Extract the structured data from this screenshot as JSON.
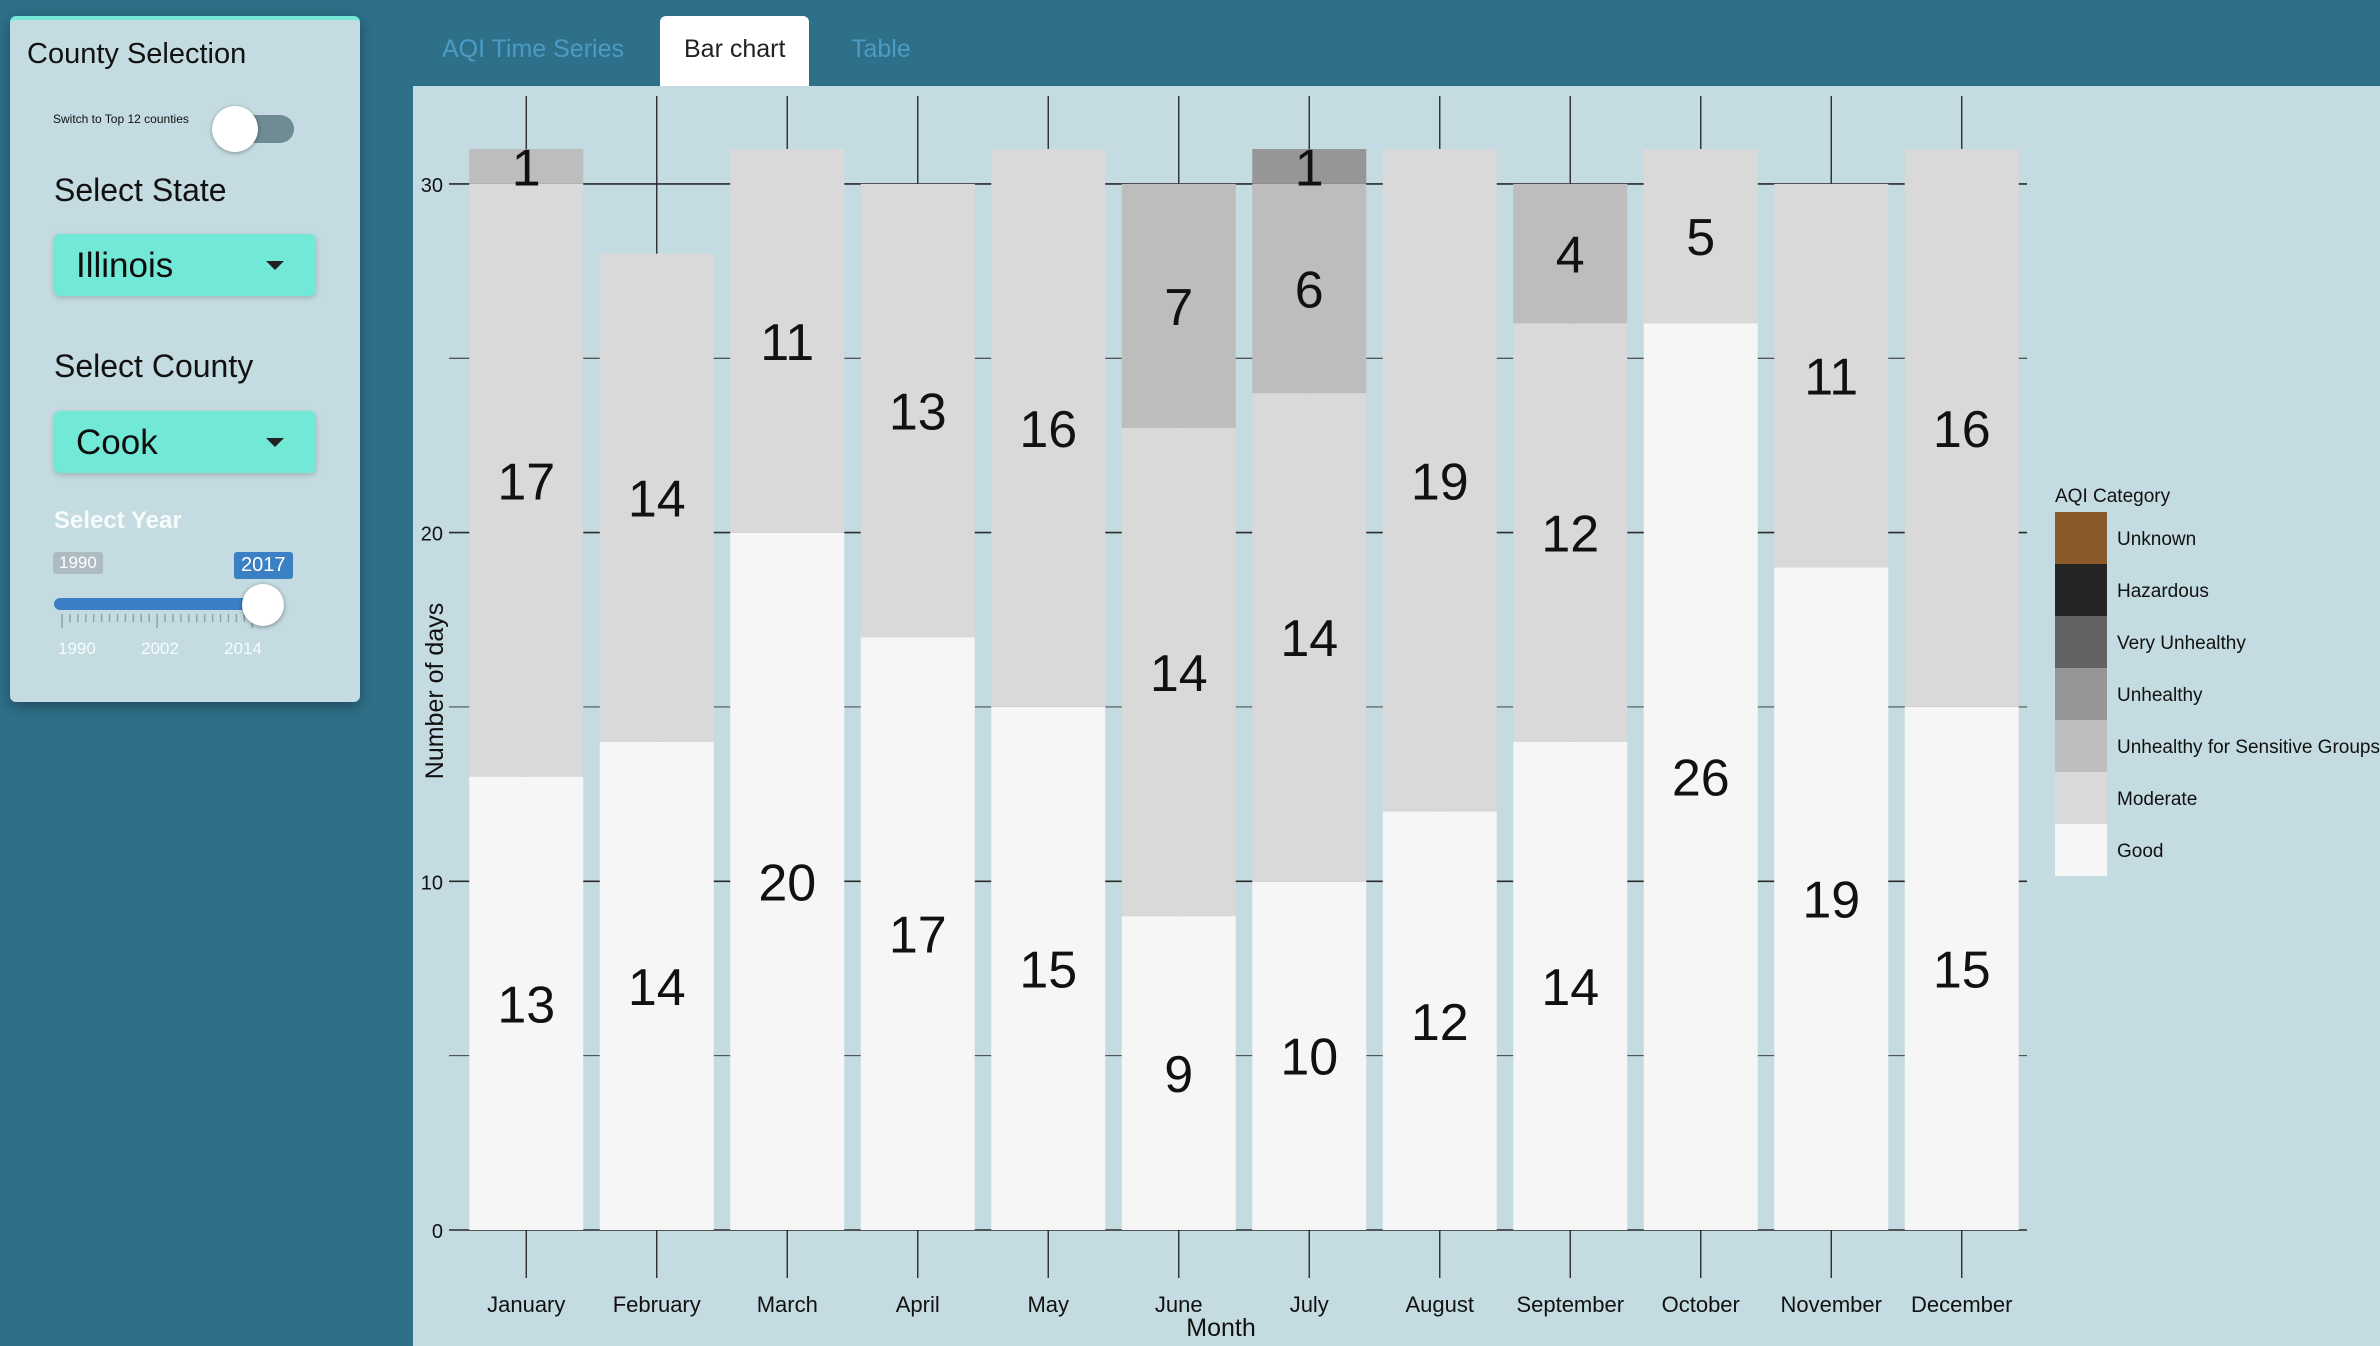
{
  "sidebar": {
    "title": "County Selection",
    "toggle_label": "Switch to Top 12 counties",
    "state_label": "Select State",
    "state_value": "Illinois",
    "county_label": "Select County",
    "county_value": "Cook",
    "year_label": "Select Year",
    "year_min": "1990",
    "year_current": "2017",
    "year_value": 2017,
    "year_range": [
      1990,
      2017
    ],
    "year_ticks": [
      "1990",
      "2002",
      "2014"
    ]
  },
  "tabs": [
    "AQI Time Series",
    "Bar chart",
    "Table"
  ],
  "active_tab": "Bar chart",
  "colors": {
    "background": "#2e7089",
    "panel": "#c3dbe1",
    "accent": "#72e8d6",
    "slider": "#3b7fc4",
    "tab_inactive_text": "#4b9bc4"
  },
  "chart_data": {
    "type": "bar",
    "stacked": true,
    "xlabel": "Month",
    "ylabel": "Number of days",
    "ylim": [
      0,
      31
    ],
    "yticks": [
      "0",
      "10",
      "20",
      "30"
    ],
    "categories": [
      "January",
      "February",
      "March",
      "April",
      "May",
      "June",
      "July",
      "August",
      "September",
      "October",
      "November",
      "December"
    ],
    "series": [
      {
        "name": "Good",
        "color": "#f6f6f6",
        "values": [
          13,
          14,
          20,
          17,
          15,
          9,
          10,
          12,
          14,
          26,
          19,
          15
        ]
      },
      {
        "name": "Moderate",
        "color": "#d9d9d9",
        "values": [
          17,
          14,
          11,
          13,
          16,
          14,
          14,
          19,
          12,
          5,
          11,
          16
        ]
      },
      {
        "name": "Unhealthy for Sensitive Groups",
        "color": "#bdbdbd",
        "values": [
          1,
          0,
          0,
          0,
          0,
          7,
          6,
          0,
          4,
          0,
          0,
          0
        ]
      },
      {
        "name": "Unhealthy",
        "color": "#969696",
        "values": [
          0,
          0,
          0,
          0,
          0,
          0,
          1,
          0,
          0,
          0,
          0,
          0
        ]
      },
      {
        "name": "Very Unhealthy",
        "color": "#636363",
        "values": [
          0,
          0,
          0,
          0,
          0,
          0,
          0,
          0,
          0,
          0,
          0,
          0
        ]
      },
      {
        "name": "Hazardous",
        "color": "#252525",
        "values": [
          0,
          0,
          0,
          0,
          0,
          0,
          0,
          0,
          0,
          0,
          0,
          0
        ]
      },
      {
        "name": "Unknown",
        "color": "#8b5a2b",
        "values": [
          0,
          0,
          0,
          0,
          0,
          0,
          0,
          0,
          0,
          0,
          0,
          0
        ]
      }
    ],
    "legend": {
      "title": "AQI Category",
      "placement": "right",
      "items": [
        "Unknown",
        "Hazardous",
        "Very Unhealthy",
        "Unhealthy",
        "Unhealthy for Sensitive Groups",
        "Moderate",
        "Good"
      ]
    },
    "grid": true
  }
}
